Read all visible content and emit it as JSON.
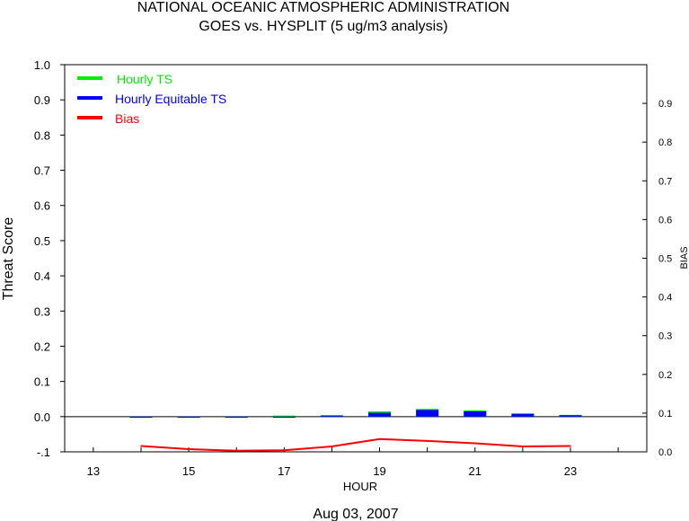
{
  "header": {
    "title": "NATIONAL OCEANIC ATMOSPHERIC ADMINISTRATION",
    "subtitle": "GOES vs. HYSPLIT  (5 ug/m3 analysis)"
  },
  "chart_data": {
    "type": "bar",
    "title": "NATIONAL OCEANIC ATMOSPHERIC ADMINISTRATION",
    "subtitle": "GOES vs. HYSPLIT  (5 ug/m3 analysis)",
    "xlabel": "HOUR",
    "ylabel": "Threat Score",
    "y2label": "BIAS",
    "date_label": "Aug 03, 2007",
    "xlim": [
      12.4,
      24.6
    ],
    "ylim": [
      -0.1,
      1.0
    ],
    "y2lim": [
      0.0,
      1.0
    ],
    "x_ticks": [
      "13",
      "15",
      "17",
      "19",
      "21",
      "23"
    ],
    "y_ticks": [
      "1.0",
      "0.9",
      "0.8",
      "0.7",
      "0.6",
      "0.5",
      "0.4",
      "0.3",
      "0.2",
      "0.1",
      "0.0",
      "-.1"
    ],
    "y2_ticks": [
      "0.9",
      "0.8",
      "0.7",
      "0.6",
      "0.5",
      "0.4",
      "0.3",
      "0.2",
      "0.1",
      "0.0"
    ],
    "x": [
      14,
      15,
      16,
      17,
      18,
      19,
      20,
      21,
      22,
      23
    ],
    "series": [
      {
        "name": "Hourly TS",
        "color": "#00ee00",
        "kind": "bar",
        "axis": "left",
        "values": [
          -0.002,
          -0.002,
          -0.001,
          0.0,
          0.004,
          0.015,
          0.022,
          0.018,
          0.009,
          0.005
        ]
      },
      {
        "name": "Hourly Equitable TS",
        "color": "#0000ff",
        "kind": "bar",
        "axis": "left",
        "values": [
          -0.002,
          -0.002,
          -0.001,
          -0.001,
          0.003,
          0.011,
          0.019,
          0.015,
          0.008,
          0.004
        ]
      },
      {
        "name": "Bias",
        "color": "#ff0000",
        "kind": "line",
        "axis": "right",
        "values": [
          0.015,
          0.007,
          0.003,
          0.004,
          0.014,
          0.033,
          0.028,
          0.022,
          0.014,
          0.015
        ]
      }
    ],
    "legend_position": "top-left",
    "grid": false
  }
}
